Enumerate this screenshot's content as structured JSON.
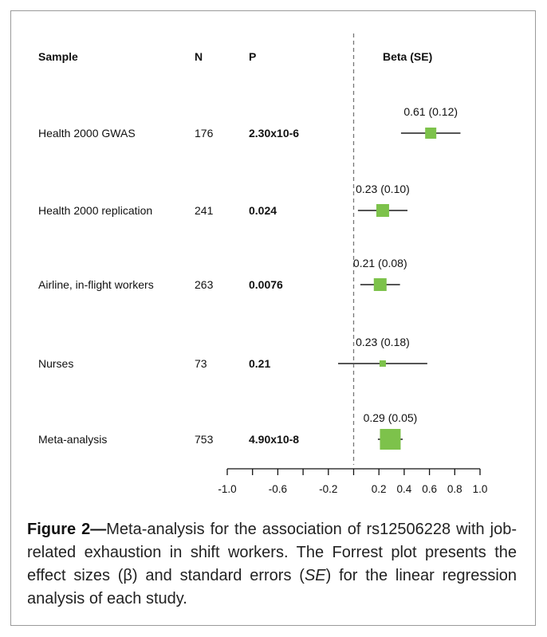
{
  "headers": {
    "sample": "Sample",
    "n": "N",
    "p": "P",
    "beta": "Beta (SE)"
  },
  "rows": [
    {
      "sample": "Health 2000 GWAS",
      "n": "176",
      "p": "2.30x10-6",
      "label": "0.61 (0.12)"
    },
    {
      "sample": "Health 2000 replication",
      "n": "241",
      "p": "0.024",
      "label": "0.23 (0.10)"
    },
    {
      "sample": "Airline, in-flight workers",
      "n": "263",
      "p": "0.0076",
      "label": "0.21 (0.08)"
    },
    {
      "sample": "Nurses",
      "n": "73",
      "p": "0.21",
      "label": "0.23 (0.18)"
    },
    {
      "sample": "Meta-analysis",
      "n": "753",
      "p": "4.90x10-8",
      "label": "0.29 (0.05)"
    }
  ],
  "chart_data": {
    "type": "scatter",
    "subtype": "forest-plot",
    "categories": [
      "Health 2000 GWAS",
      "Health 2000 replication",
      "Airline, in-flight workers",
      "Nurses",
      "Meta-analysis"
    ],
    "series": [
      {
        "values": [
          0.61,
          0.23,
          0.21,
          0.23,
          0.29
        ],
        "se": [
          0.12,
          0.1,
          0.08,
          0.18,
          0.05
        ]
      }
    ],
    "marker_color": "#7dc24b",
    "ci_line_color": "#555555",
    "reference_line": 0,
    "xlim": [
      -1.0,
      1.0
    ],
    "tick_values": [
      -1.0,
      -0.8,
      -0.6,
      -0.4,
      -0.2,
      0,
      0.2,
      0.4,
      0.6,
      0.8,
      1.0
    ],
    "tick_labels": [
      "-1.0",
      "-0.6",
      "-0.2",
      "0.2",
      "0.4",
      "0.6",
      "0.8",
      "1.0"
    ],
    "labeled_ticks": [
      -1.0,
      -0.6,
      -0.2,
      0.2,
      0.4,
      0.6,
      0.8,
      1.0
    ],
    "grid": false
  },
  "caption": {
    "label": "Figure 2—",
    "text_1": "Meta-analysis for the association of rs12506228 with job-related exhaustion in shift workers. The Forrest plot presents the effect sizes (β) and standard errors (",
    "se_italic": "SE",
    "text_2": ") for the linear regression analysis of each study."
  }
}
